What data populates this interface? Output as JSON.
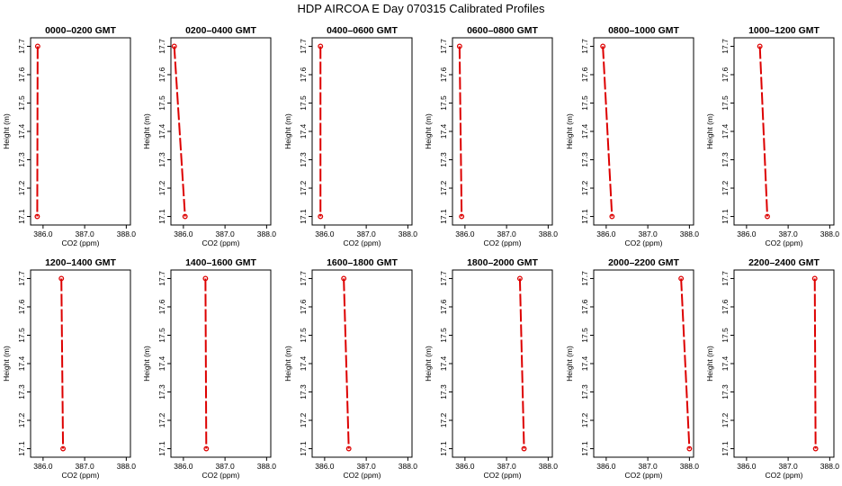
{
  "title": "HDP  AIRCOA E  Day 070315  Calibrated Profiles",
  "colors": {
    "series": "#dd0000",
    "frame": "#000000"
  },
  "chart_data": {
    "type": "line",
    "layout": "2x6 grid of profile panels",
    "xlabel": "CO2 (ppm)",
    "ylabel": "Height (m)",
    "xlim": [
      385.7,
      388.1
    ],
    "ylim": [
      17.07,
      17.73
    ],
    "xticks": [
      386.0,
      387.0,
      388.0
    ],
    "xtick_labels": [
      "386.0",
      "387.0",
      "388.0"
    ],
    "yticks": [
      17.1,
      17.2,
      17.3,
      17.4,
      17.5,
      17.6,
      17.7
    ],
    "ytick_labels": [
      "17.1",
      "17.2",
      "17.3",
      "17.4",
      "17.5",
      "17.6",
      "17.7"
    ],
    "panels": [
      {
        "title": "0000–0200 GMT",
        "x": [
          385.87,
          385.86
        ],
        "y": [
          17.7,
          17.1
        ]
      },
      {
        "title": "0200–0400 GMT",
        "x": [
          385.78,
          386.04
        ],
        "y": [
          17.7,
          17.1
        ]
      },
      {
        "title": "0400–0600 GMT",
        "x": [
          385.9,
          385.9
        ],
        "y": [
          17.7,
          17.1
        ]
      },
      {
        "title": "0600–0800 GMT",
        "x": [
          385.87,
          385.92
        ],
        "y": [
          17.7,
          17.1
        ]
      },
      {
        "title": "0800–1000 GMT",
        "x": [
          385.92,
          386.14
        ],
        "y": [
          17.7,
          17.1
        ]
      },
      {
        "title": "1000–1200 GMT",
        "x": [
          386.32,
          386.5
        ],
        "y": [
          17.7,
          17.1
        ]
      },
      {
        "title": "1200–1400 GMT",
        "x": [
          386.44,
          386.48
        ],
        "y": [
          17.7,
          17.1
        ]
      },
      {
        "title": "1400–1600 GMT",
        "x": [
          386.53,
          386.55
        ],
        "y": [
          17.7,
          17.1
        ]
      },
      {
        "title": "1600–1800 GMT",
        "x": [
          386.46,
          386.58
        ],
        "y": [
          17.7,
          17.1
        ]
      },
      {
        "title": "1800–2000 GMT",
        "x": [
          387.32,
          387.42
        ],
        "y": [
          17.7,
          17.1
        ]
      },
      {
        "title": "2000–2200 GMT",
        "x": [
          387.8,
          388.0
        ],
        "y": [
          17.7,
          17.1
        ]
      },
      {
        "title": "2200–2400 GMT",
        "x": [
          387.64,
          387.66
        ],
        "y": [
          17.7,
          17.1
        ]
      }
    ]
  }
}
